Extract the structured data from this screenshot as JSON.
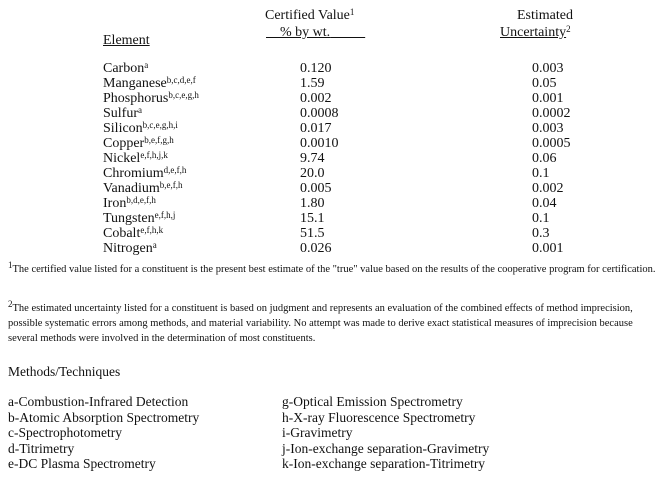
{
  "table": {
    "headers": {
      "element": "Element",
      "certified_line1": "Certified Value",
      "certified_sup": "1",
      "certified_line2": "% by wt.",
      "uncertainty_line1": "Estimated",
      "uncertainty_line2": "Uncertainty",
      "uncertainty_sup": "2"
    },
    "rows": [
      {
        "element": "Carbon",
        "methods": "a",
        "certified": "0.120",
        "uncertainty": "0.003"
      },
      {
        "element": "Manganese",
        "methods": "b,c,d,e,f",
        "certified": "1.59",
        "uncertainty": "0.05"
      },
      {
        "element": "Phosphorus",
        "methods": "b,c,e,g,h",
        "certified": "0.002",
        "uncertainty": "0.001"
      },
      {
        "element": "Sulfur",
        "methods": "a",
        "certified": "0.0008",
        "uncertainty": "0.0002"
      },
      {
        "element": "Silicon",
        "methods": "b,c,e,g,h,i",
        "certified": "0.017",
        "uncertainty": "0.003"
      },
      {
        "element": "Copper",
        "methods": "b,e,f,g,h",
        "certified": "0.0010",
        "uncertainty": "0.0005"
      },
      {
        "element": "Nickel",
        "methods": "e,f,h,j,k",
        "certified": "9.74",
        "uncertainty": "0.06"
      },
      {
        "element": "Chromium",
        "methods": "d,e,f,h",
        "certified": "20.0",
        "uncertainty": "0.1"
      },
      {
        "element": "Vanadium",
        "methods": "b,e,f,h",
        "certified": "0.005",
        "uncertainty": "0.002"
      },
      {
        "element": "Iron",
        "methods": "b,d,e,f,h",
        "certified": "1.80",
        "uncertainty": "0.04"
      },
      {
        "element": "Tungsten",
        "methods": "e,f,h,j",
        "certified": "15.1",
        "uncertainty": "0.1"
      },
      {
        "element": "Cobalt",
        "methods": "e,f,h,k",
        "certified": "51.5",
        "uncertainty": "0.3"
      },
      {
        "element": "Nitrogen",
        "methods": "a",
        "certified": "0.026",
        "uncertainty": "0.001"
      }
    ]
  },
  "footnotes": [
    {
      "mark": "1",
      "text": "The certified value listed for a constituent is the present best estimate of the \"true\" value based on the results of the cooperative program for certification."
    },
    {
      "mark": "2",
      "text": "The estimated uncertainty listed for a constituent is based on judgment and represents an evaluation of the combined effects of method imprecision, possible systematic errors among methods, and material variability. No attempt was made to derive exact statistical measures of imprecision because several methods were  involved in the determination of most constituents."
    }
  ],
  "methods": {
    "title": "Methods/Techniques",
    "left": [
      "a-Combustion-Infrared Detection",
      "b-Atomic Absorption Spectrometry",
      "c-Spectrophotometry",
      "d-Titrimetry",
      "e-DC Plasma Spectrometry"
    ],
    "right": [
      "g-Optical Emission Spectrometry",
      "h-X-ray Fluorescence Spectrometry",
      "i-Gravimetry",
      "j-Ion-exchange separation-Gravimetry",
      "k-Ion-exchange separation-Titrimetry"
    ]
  }
}
